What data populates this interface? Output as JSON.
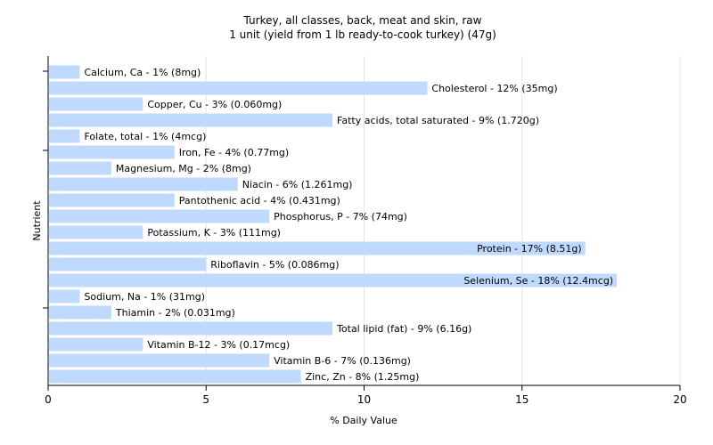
{
  "chart_data": {
    "type": "bar",
    "orientation": "horizontal",
    "title": "Turkey, all classes, back, meat and skin, raw",
    "subtitle": "1 unit (yield from 1 lb ready-to-cook turkey) (47g)",
    "xlabel": "% Daily Value",
    "ylabel": "Nutrient",
    "xlim": [
      0,
      20
    ],
    "xticks": [
      0,
      5,
      10,
      15,
      20
    ],
    "grid": true,
    "bar_color": "#bfd9ff",
    "categories": [
      "Calcium, Ca",
      "Cholesterol",
      "Copper, Cu",
      "Fatty acids, total saturated",
      "Folate, total",
      "Iron, Fe",
      "Magnesium, Mg",
      "Niacin",
      "Pantothenic acid",
      "Phosphorus, P",
      "Potassium, K",
      "Protein",
      "Riboflavin",
      "Selenium, Se",
      "Sodium, Na",
      "Thiamin",
      "Total lipid (fat)",
      "Vitamin B-12",
      "Vitamin B-6",
      "Zinc, Zn"
    ],
    "values": [
      1,
      12,
      3,
      9,
      1,
      4,
      2,
      6,
      4,
      7,
      3,
      17,
      5,
      18,
      1,
      2,
      9,
      3,
      7,
      8
    ],
    "labels": [
      "Calcium, Ca - 1% (8mg)",
      "Cholesterol - 12% (35mg)",
      "Copper, Cu - 3% (0.060mg)",
      "Fatty acids, total saturated - 9% (1.720g)",
      "Folate, total - 1% (4mcg)",
      "Iron, Fe - 4% (0.77mg)",
      "Magnesium, Mg - 2% (8mg)",
      "Niacin - 6% (1.261mg)",
      "Pantothenic acid - 4% (0.431mg)",
      "Phosphorus, P - 7% (74mg)",
      "Potassium, K - 3% (111mg)",
      "Protein - 17% (8.51g)",
      "Riboflavin - 5% (0.086mg)",
      "Selenium, Se - 18% (12.4mcg)",
      "Sodium, Na - 1% (31mg)",
      "Thiamin - 2% (0.031mg)",
      "Total lipid (fat) - 9% (6.16g)",
      "Vitamin B-12 - 3% (0.17mcg)",
      "Vitamin B-6 - 7% (0.136mg)",
      "Zinc, Zn - 8% (1.25mg)"
    ]
  }
}
